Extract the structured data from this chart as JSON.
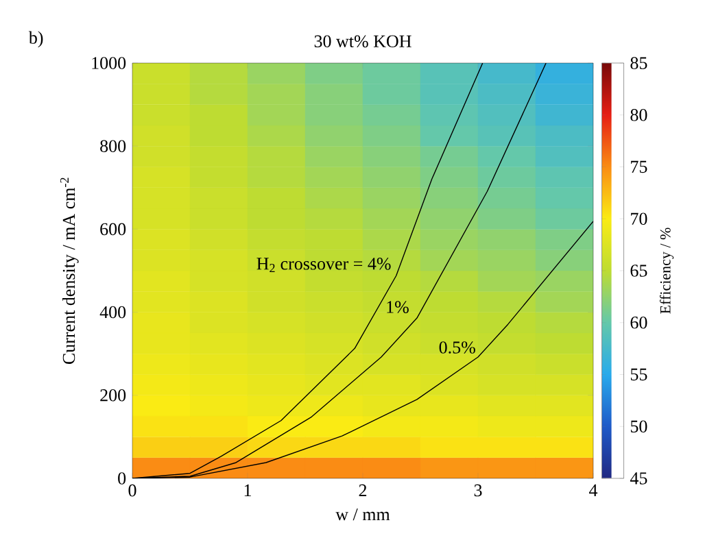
{
  "chart_data": [
    {
      "type": "heatmap",
      "clabel": "Efficiency / %",
      "tick_labels": false,
      "categories": [
        null,
        null,
        null,
        null,
        null,
        null,
        null,
        null
      ],
      "y_categories": [
        null,
        null,
        null,
        null,
        null,
        null,
        null,
        null,
        null,
        null,
        null,
        null,
        null,
        null,
        null,
        null,
        null,
        null,
        null,
        null
      ],
      "clim": [
        45,
        85
      ],
      "cticks": [
        45,
        50,
        55,
        60,
        65,
        70,
        75,
        80,
        85
      ],
      "cells": [
        [
          66,
          64.5,
          63,
          61.5,
          60.5,
          59,
          57.5,
          56
        ],
        [
          66,
          64.5,
          63.5,
          62,
          60.5,
          59,
          58,
          56.5
        ],
        [
          66,
          65,
          63.5,
          62,
          61,
          59.5,
          58.5,
          57
        ],
        [
          66.5,
          65,
          64,
          62.5,
          61.5,
          60,
          59,
          58
        ],
        [
          66.5,
          65.5,
          64.5,
          63,
          62,
          61,
          60,
          58.5
        ],
        [
          67,
          65.5,
          64.5,
          63.5,
          62.5,
          61.5,
          60.5,
          59.5
        ],
        [
          67,
          66,
          65,
          64,
          63,
          62,
          61,
          60
        ],
        [
          67,
          66,
          65,
          64.5,
          63.5,
          62.5,
          61.5,
          60.5
        ],
        [
          67.5,
          66.5,
          65.5,
          65,
          64,
          63,
          62.5,
          61.5
        ],
        [
          67.5,
          67,
          66,
          65,
          64.5,
          63.5,
          63,
          62
        ],
        [
          68,
          67,
          66.5,
          65.5,
          65,
          64.5,
          63.5,
          63
        ],
        [
          68,
          67.5,
          66.5,
          66,
          65.5,
          65,
          64.5,
          63.5
        ],
        [
          68.5,
          67.5,
          67,
          66.5,
          66,
          65.5,
          65,
          64.5
        ],
        [
          68.5,
          68,
          67.5,
          67,
          66.5,
          66,
          65.5,
          65
        ],
        [
          69,
          68.5,
          68,
          67.5,
          67,
          67,
          66.5,
          66
        ],
        [
          69.5,
          69,
          68.5,
          68,
          68,
          67.5,
          67,
          67
        ],
        [
          70,
          69.5,
          69,
          69,
          68.5,
          68.5,
          68,
          68
        ],
        [
          70.5,
          70.5,
          70,
          70,
          69.5,
          69.5,
          69,
          69
        ],
        [
          71.5,
          71.5,
          71,
          71,
          71,
          70.5,
          70.5,
          70.5
        ],
        [
          75,
          75,
          75,
          75,
          75,
          74.5,
          74.5,
          74.5
        ]
      ]
    },
    {
      "type": "line",
      "title": "30 wt% KOH",
      "xlabel": "w / mm",
      "ylabel": "Current density / mA cm$^{-2}$",
      "annotations": [
        "b)"
      ],
      "xlim": [
        0,
        4
      ],
      "xticks": [
        0,
        1,
        2,
        3,
        4
      ],
      "ylim": [
        0,
        1000
      ],
      "yticks": [
        0,
        200,
        400,
        600,
        800,
        1000
      ],
      "series": [
        {
          "type": "line",
          "name": "H$_{2}$ crossover = 4%",
          "color": "#000000",
          "x": [
            0,
            0.5,
            0.77,
            1.29,
            1.93,
            2.29,
            2.6,
            3.04
          ],
          "values": [
            0,
            12,
            53,
            139,
            313,
            488,
            721,
            1000
          ]
        },
        {
          "type": "line",
          "name": "1%",
          "color": "#000000",
          "x": [
            0,
            0.5,
            0.9,
            1.55,
            2.16,
            2.47,
            3.08,
            3.59
          ],
          "values": [
            0,
            5,
            38,
            147,
            292,
            386,
            691,
            1000
          ]
        },
        {
          "type": "line",
          "name": "0.5%",
          "color": "#000000",
          "x": [
            0,
            0.5,
            1.16,
            1.82,
            2.47,
            3.0,
            3.26,
            4.0
          ],
          "values": [
            0,
            3,
            38,
            102,
            190,
            292,
            371,
            619
          ]
        }
      ]
    }
  ]
}
